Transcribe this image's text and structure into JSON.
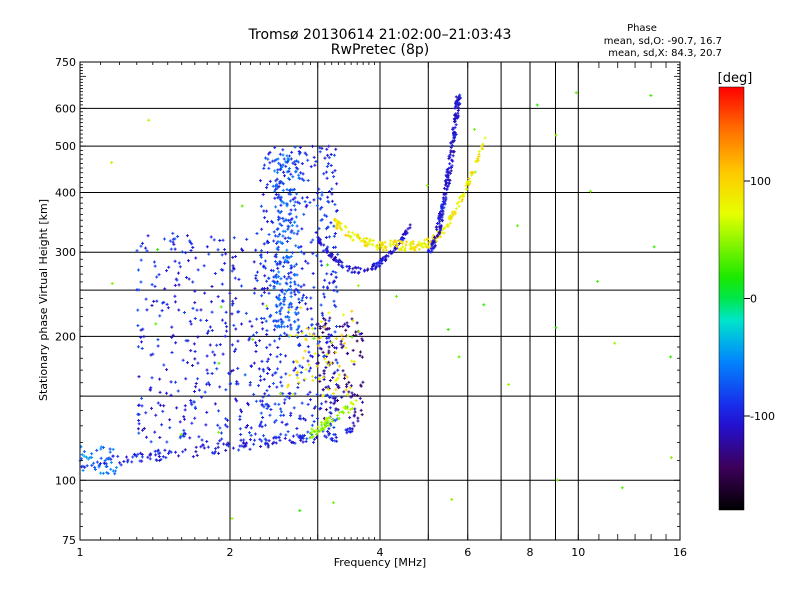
{
  "chart_data": {
    "type": "scatter",
    "title": "Tromsø 20130614 21:02:00–21:03:43",
    "subtitle": "RwPretec (8p)",
    "xlabel": "Frequency [MHz]",
    "ylabel": "Stationary phase Virtual Height [km]",
    "x_scale": "log",
    "y_scale": "log",
    "xlim": [
      1,
      16
    ],
    "ylim": [
      75,
      750
    ],
    "x_ticks": [
      1,
      2,
      4,
      6,
      8,
      10,
      16
    ],
    "x_minor_gridlines": [
      3,
      5,
      7,
      9
    ],
    "y_ticks": [
      75,
      100,
      200,
      300,
      400,
      500,
      600,
      750
    ],
    "y_minor_gridlines": [
      150,
      250
    ],
    "grid": true,
    "phase_stats": {
      "title": "Phase",
      "line_o": "mean, sd,O: -90.7, 16.7",
      "line_x": "mean, sd,X:  84.3, 20.7"
    },
    "colorbar": {
      "label": "[deg]",
      "range": [
        -180,
        180
      ],
      "ticks": [
        100,
        0,
        -100
      ]
    },
    "point_clusters": [
      {
        "name": "low_trace",
        "x_range": [
          1.0,
          3.6
        ],
        "y_range": [
          105,
          130
        ],
        "phase": -100,
        "count": 160
      },
      {
        "name": "low_trace_cyan",
        "x_range": [
          1.0,
          1.2
        ],
        "y_range": [
          103,
          118
        ],
        "phase": -60,
        "count": 40
      },
      {
        "name": "E_F_spread",
        "x_range": [
          1.3,
          2.4
        ],
        "y_range": [
          120,
          330
        ],
        "phase": -95,
        "count": 360
      },
      {
        "name": "spread_column",
        "x_range": [
          2.3,
          3.3
        ],
        "y_range": [
          120,
          500
        ],
        "phase": -90,
        "count": 480
      },
      {
        "name": "cusp_column",
        "x_range": [
          2.45,
          2.75
        ],
        "y_range": [
          200,
          480
        ],
        "phase": -70,
        "count": 200
      },
      {
        "name": "F_curve",
        "x_range": [
          3.0,
          4.6
        ],
        "y_range": [
          275,
          310
        ],
        "phase": -105,
        "count": 130
      },
      {
        "name": "X_trace",
        "x_range": [
          3.2,
          6.6
        ],
        "y_range": [
          305,
          540
        ],
        "phase": 85,
        "count": 220
      },
      {
        "name": "O_critical",
        "x_range": [
          5.0,
          5.8
        ],
        "y_range": [
          300,
          640
        ],
        "phase": -105,
        "count": 200
      },
      {
        "name": "cusp_fill",
        "x_range": [
          3.0,
          3.7
        ],
        "y_range": [
          130,
          220
        ],
        "phase": -130,
        "count": 120
      },
      {
        "name": "green_arc",
        "x_range": [
          2.9,
          3.6
        ],
        "y_range": [
          125,
          145
        ],
        "phase": 55,
        "count": 60
      },
      {
        "name": "X_spread_low",
        "x_range": [
          2.6,
          3.6
        ],
        "y_range": [
          150,
          230
        ],
        "phase": 90,
        "count": 70
      },
      {
        "name": "scattered_noise",
        "x_range": [
          1.0,
          16.0
        ],
        "y_range": [
          80,
          700
        ],
        "phase": 40,
        "count": 45
      }
    ]
  }
}
